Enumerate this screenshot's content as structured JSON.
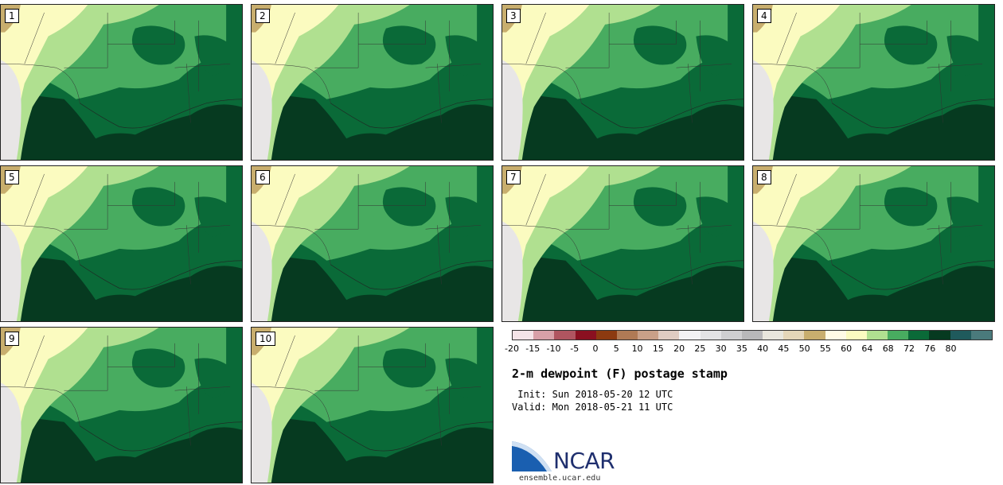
{
  "panels": [
    {
      "label": "1"
    },
    {
      "label": "2"
    },
    {
      "label": "3"
    },
    {
      "label": "4"
    },
    {
      "label": "5"
    },
    {
      "label": "6"
    },
    {
      "label": "7"
    },
    {
      "label": "8"
    },
    {
      "label": "9"
    },
    {
      "label": "10"
    }
  ],
  "legend": {
    "ticks": [
      "-20",
      "-15",
      "-10",
      "-5",
      "0",
      "5",
      "10",
      "15",
      "20",
      "25",
      "30",
      "35",
      "40",
      "45",
      "50",
      "55",
      "60",
      "64",
      "68",
      "72",
      "76",
      "80"
    ],
    "colors": [
      "#f4e4e8",
      "#d8a0a8",
      "#b05560",
      "#8a1020",
      "#8c3a10",
      "#b07a55",
      "#c9a088",
      "#e0ccc2",
      "#f3f2f4",
      "#e3e3e5",
      "#cfcfd1",
      "#b8b8ba",
      "#e8e6dd",
      "#e4d6b8",
      "#c8ae6e",
      "#fffbe6",
      "#fbfbc0",
      "#b0e090",
      "#48ac60",
      "#0a6a38",
      "#063a20",
      "#1f5a5c",
      "#4a7a7c"
    ]
  },
  "title": "2-m dewpoint (F) postage stamp",
  "init": " Init: Sun 2018-05-20 12 UTC",
  "valid": "Valid: Mon 2018-05-21 11 UTC",
  "logo": {
    "text": "NCAR",
    "url": "ensemble.ucar.edu"
  }
}
